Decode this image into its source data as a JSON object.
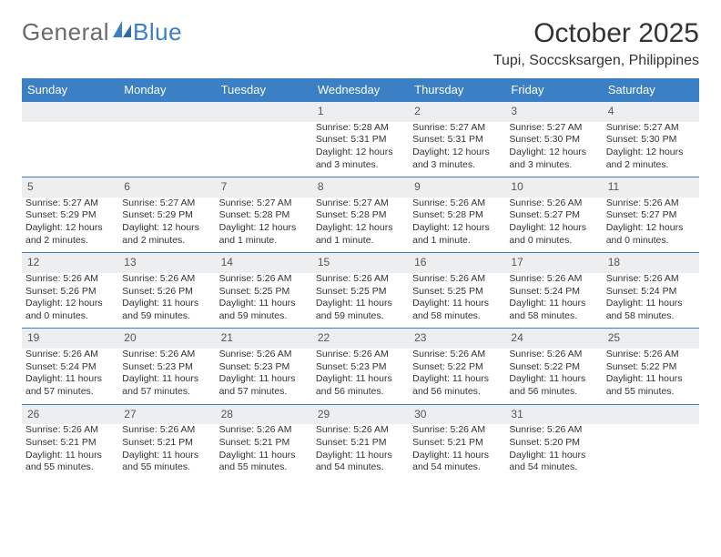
{
  "logo": {
    "textA": "General",
    "textB": "Blue"
  },
  "title": "October 2025",
  "location": "Tupi, Soccsksargen, Philippines",
  "colors": {
    "header_bg": "#3b7fc4",
    "header_text": "#ffffff",
    "daynum_bg": "#edeeef",
    "row_border": "#3b7fc4",
    "body_text": "#333333",
    "logo_gray": "#6a6a6a",
    "logo_blue": "#3b7fc4",
    "page_bg": "#ffffff"
  },
  "dayHeaders": [
    "Sunday",
    "Monday",
    "Tuesday",
    "Wednesday",
    "Thursday",
    "Friday",
    "Saturday"
  ],
  "weeks": [
    [
      null,
      null,
      null,
      {
        "n": "1",
        "sr": "5:28 AM",
        "ss": "5:31 PM",
        "dl": "12 hours and 3 minutes."
      },
      {
        "n": "2",
        "sr": "5:27 AM",
        "ss": "5:31 PM",
        "dl": "12 hours and 3 minutes."
      },
      {
        "n": "3",
        "sr": "5:27 AM",
        "ss": "5:30 PM",
        "dl": "12 hours and 3 minutes."
      },
      {
        "n": "4",
        "sr": "5:27 AM",
        "ss": "5:30 PM",
        "dl": "12 hours and 2 minutes."
      }
    ],
    [
      {
        "n": "5",
        "sr": "5:27 AM",
        "ss": "5:29 PM",
        "dl": "12 hours and 2 minutes."
      },
      {
        "n": "6",
        "sr": "5:27 AM",
        "ss": "5:29 PM",
        "dl": "12 hours and 2 minutes."
      },
      {
        "n": "7",
        "sr": "5:27 AM",
        "ss": "5:28 PM",
        "dl": "12 hours and 1 minute."
      },
      {
        "n": "8",
        "sr": "5:27 AM",
        "ss": "5:28 PM",
        "dl": "12 hours and 1 minute."
      },
      {
        "n": "9",
        "sr": "5:26 AM",
        "ss": "5:28 PM",
        "dl": "12 hours and 1 minute."
      },
      {
        "n": "10",
        "sr": "5:26 AM",
        "ss": "5:27 PM",
        "dl": "12 hours and 0 minutes."
      },
      {
        "n": "11",
        "sr": "5:26 AM",
        "ss": "5:27 PM",
        "dl": "12 hours and 0 minutes."
      }
    ],
    [
      {
        "n": "12",
        "sr": "5:26 AM",
        "ss": "5:26 PM",
        "dl": "12 hours and 0 minutes."
      },
      {
        "n": "13",
        "sr": "5:26 AM",
        "ss": "5:26 PM",
        "dl": "11 hours and 59 minutes."
      },
      {
        "n": "14",
        "sr": "5:26 AM",
        "ss": "5:25 PM",
        "dl": "11 hours and 59 minutes."
      },
      {
        "n": "15",
        "sr": "5:26 AM",
        "ss": "5:25 PM",
        "dl": "11 hours and 59 minutes."
      },
      {
        "n": "16",
        "sr": "5:26 AM",
        "ss": "5:25 PM",
        "dl": "11 hours and 58 minutes."
      },
      {
        "n": "17",
        "sr": "5:26 AM",
        "ss": "5:24 PM",
        "dl": "11 hours and 58 minutes."
      },
      {
        "n": "18",
        "sr": "5:26 AM",
        "ss": "5:24 PM",
        "dl": "11 hours and 58 minutes."
      }
    ],
    [
      {
        "n": "19",
        "sr": "5:26 AM",
        "ss": "5:24 PM",
        "dl": "11 hours and 57 minutes."
      },
      {
        "n": "20",
        "sr": "5:26 AM",
        "ss": "5:23 PM",
        "dl": "11 hours and 57 minutes."
      },
      {
        "n": "21",
        "sr": "5:26 AM",
        "ss": "5:23 PM",
        "dl": "11 hours and 57 minutes."
      },
      {
        "n": "22",
        "sr": "5:26 AM",
        "ss": "5:23 PM",
        "dl": "11 hours and 56 minutes."
      },
      {
        "n": "23",
        "sr": "5:26 AM",
        "ss": "5:22 PM",
        "dl": "11 hours and 56 minutes."
      },
      {
        "n": "24",
        "sr": "5:26 AM",
        "ss": "5:22 PM",
        "dl": "11 hours and 56 minutes."
      },
      {
        "n": "25",
        "sr": "5:26 AM",
        "ss": "5:22 PM",
        "dl": "11 hours and 55 minutes."
      }
    ],
    [
      {
        "n": "26",
        "sr": "5:26 AM",
        "ss": "5:21 PM",
        "dl": "11 hours and 55 minutes."
      },
      {
        "n": "27",
        "sr": "5:26 AM",
        "ss": "5:21 PM",
        "dl": "11 hours and 55 minutes."
      },
      {
        "n": "28",
        "sr": "5:26 AM",
        "ss": "5:21 PM",
        "dl": "11 hours and 55 minutes."
      },
      {
        "n": "29",
        "sr": "5:26 AM",
        "ss": "5:21 PM",
        "dl": "11 hours and 54 minutes."
      },
      {
        "n": "30",
        "sr": "5:26 AM",
        "ss": "5:21 PM",
        "dl": "11 hours and 54 minutes."
      },
      {
        "n": "31",
        "sr": "5:26 AM",
        "ss": "5:20 PM",
        "dl": "11 hours and 54 minutes."
      },
      null
    ]
  ],
  "labels": {
    "sunrise": "Sunrise: ",
    "sunset": "Sunset: ",
    "daylight": "Daylight: "
  }
}
